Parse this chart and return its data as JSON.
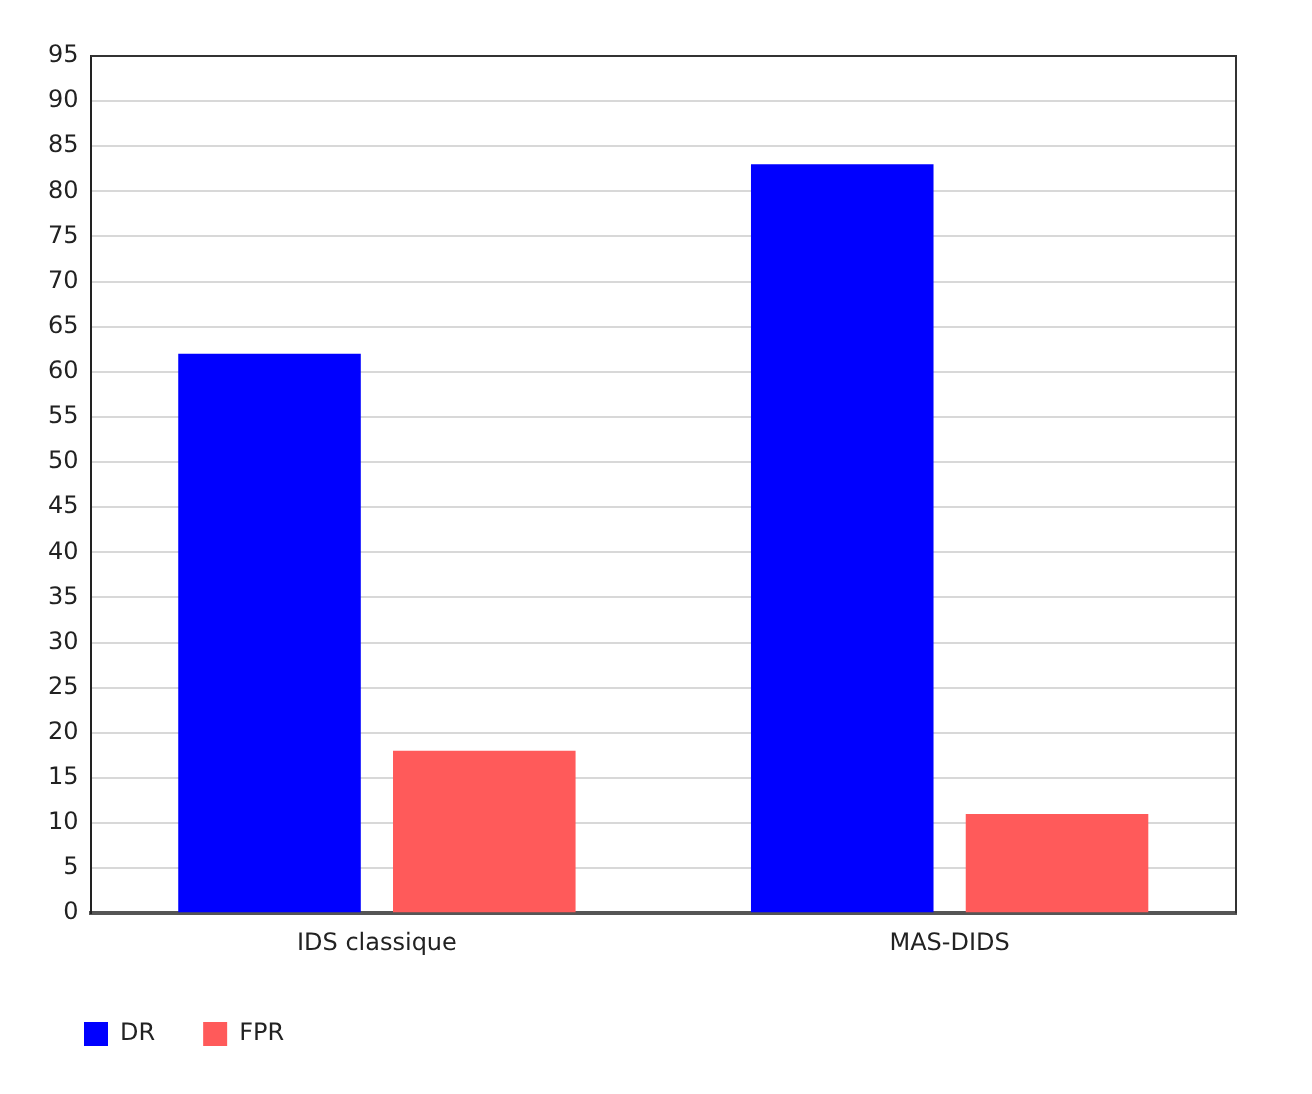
{
  "chart_data": {
    "type": "bar",
    "categories": [
      "IDS classique",
      "MAS-DIDS"
    ],
    "series": [
      {
        "name": "DR",
        "color": "#0000ff",
        "values": [
          62,
          83
        ]
      },
      {
        "name": "FPR",
        "color": "#ff5a5a",
        "values": [
          18,
          11
        ]
      }
    ],
    "ylim": [
      0,
      95
    ],
    "yticks": [
      0,
      5,
      10,
      15,
      20,
      25,
      30,
      35,
      40,
      45,
      50,
      55,
      60,
      65,
      70,
      75,
      80,
      85,
      90,
      95
    ],
    "grid": "y",
    "legend": "bottom left"
  }
}
